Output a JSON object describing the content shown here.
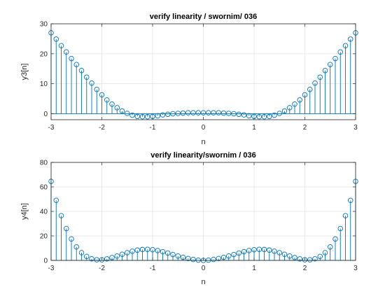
{
  "chart_data": [
    {
      "type": "stem",
      "title": "verify linearity / swornim/ 036",
      "xlabel": "n",
      "ylabel": "y3[n]",
      "xlim": [
        -3,
        3
      ],
      "ylim": [
        -2,
        30
      ],
      "xticks": [
        -3,
        -2,
        -1,
        0,
        1,
        2,
        3
      ],
      "yticks": [
        0,
        10,
        20,
        30
      ],
      "grid": true,
      "color": "#0072BD",
      "x": [
        -3.0,
        -2.9,
        -2.8,
        -2.7,
        -2.6,
        -2.5,
        -2.4,
        -2.3,
        -2.2,
        -2.1,
        -2.0,
        -1.9,
        -1.8,
        -1.7,
        -1.6,
        -1.5,
        -1.4,
        -1.3,
        -1.2,
        -1.1,
        -1.0,
        -0.9,
        -0.8,
        -0.7,
        -0.6,
        -0.5,
        -0.4,
        -0.3,
        -0.2,
        -0.1,
        0.0,
        0.1,
        0.2,
        0.3,
        0.4,
        0.5,
        0.6,
        0.7,
        0.8,
        0.9,
        1.0,
        1.1,
        1.2,
        1.3,
        1.4,
        1.5,
        1.6,
        1.7,
        1.8,
        1.9,
        2.0,
        2.1,
        2.2,
        2.3,
        2.4,
        2.5,
        2.6,
        2.7,
        2.8,
        2.9,
        3.0
      ],
      "y": [
        27.0,
        24.9,
        22.7,
        20.6,
        18.4,
        16.4,
        14.4,
        12.2,
        10.2,
        8.1,
        6.3,
        4.6,
        3.2,
        2.0,
        0.9,
        0.1,
        -0.5,
        -0.9,
        -1.0,
        -1.0,
        -0.9,
        -0.7,
        -0.4,
        -0.2,
        0.0,
        0.1,
        0.2,
        0.3,
        0.3,
        0.3,
        0.3,
        0.3,
        0.3,
        0.3,
        0.2,
        0.1,
        0.0,
        -0.2,
        -0.4,
        -0.7,
        -0.9,
        -1.0,
        -1.0,
        -0.9,
        -0.5,
        0.1,
        0.9,
        2.0,
        3.2,
        4.6,
        6.3,
        8.1,
        10.2,
        12.2,
        14.4,
        16.4,
        18.4,
        20.6,
        22.7,
        24.9,
        27.0
      ]
    },
    {
      "type": "stem",
      "title": "verify linearity/swornim / 036",
      "xlabel": "n",
      "ylabel": "y4[n]",
      "xlim": [
        -3,
        3
      ],
      "ylim": [
        0,
        80
      ],
      "xticks": [
        -3,
        -2,
        -1,
        0,
        1,
        2,
        3
      ],
      "yticks": [
        0,
        20,
        40,
        60,
        80
      ],
      "grid": true,
      "color": "#0072BD",
      "x": [
        -3.0,
        -2.9,
        -2.8,
        -2.7,
        -2.6,
        -2.5,
        -2.4,
        -2.3,
        -2.2,
        -2.1,
        -2.0,
        -1.9,
        -1.8,
        -1.7,
        -1.6,
        -1.5,
        -1.4,
        -1.3,
        -1.2,
        -1.1,
        -1.0,
        -0.9,
        -0.8,
        -0.7,
        -0.6,
        -0.5,
        -0.4,
        -0.3,
        -0.2,
        -0.1,
        0.0,
        0.1,
        0.2,
        0.3,
        0.4,
        0.5,
        0.6,
        0.7,
        0.8,
        0.9,
        1.0,
        1.1,
        1.2,
        1.3,
        1.4,
        1.5,
        1.6,
        1.7,
        1.8,
        1.9,
        2.0,
        2.1,
        2.2,
        2.3,
        2.4,
        2.5,
        2.6,
        2.7,
        2.8,
        2.9,
        3.0
      ],
      "y": [
        64.5,
        49.0,
        36.5,
        26.0,
        17.5,
        11.0,
        6.3,
        3.2,
        1.3,
        0.5,
        0.5,
        1.2,
        2.3,
        3.6,
        5.0,
        6.3,
        7.5,
        8.4,
        8.9,
        9.0,
        8.7,
        8.0,
        7.1,
        6.0,
        4.8,
        3.6,
        2.5,
        1.5,
        0.8,
        0.2,
        0.0,
        0.2,
        0.8,
        1.5,
        2.5,
        3.6,
        4.8,
        6.0,
        7.1,
        8.0,
        8.7,
        9.0,
        8.9,
        8.4,
        7.5,
        6.3,
        5.0,
        3.6,
        2.3,
        1.2,
        0.5,
        0.5,
        1.3,
        3.2,
        6.3,
        11.0,
        17.5,
        26.0,
        36.5,
        49.0,
        64.5
      ]
    }
  ]
}
